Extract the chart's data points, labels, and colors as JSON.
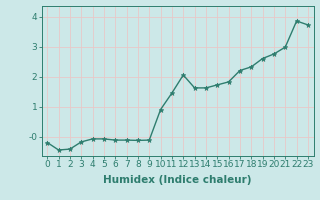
{
  "x": [
    0,
    1,
    2,
    3,
    4,
    5,
    6,
    7,
    8,
    9,
    10,
    11,
    12,
    13,
    14,
    15,
    16,
    17,
    18,
    19,
    20,
    21,
    22,
    23
  ],
  "y": [
    -0.2,
    -0.45,
    -0.42,
    -0.18,
    -0.08,
    -0.08,
    -0.12,
    -0.12,
    -0.13,
    -0.12,
    0.9,
    1.45,
    2.05,
    1.62,
    1.62,
    1.72,
    1.82,
    2.2,
    2.32,
    2.6,
    2.75,
    2.98,
    3.85,
    3.72
  ],
  "line_color": "#2e7d6e",
  "marker": "*",
  "marker_size": 3.5,
  "bg_color": "#cce8e8",
  "grid_color": "#e8c8c8",
  "xlabel": "Humidex (Indice chaleur)",
  "xlabel_fontsize": 7.5,
  "tick_fontsize": 6.5,
  "ylim": [
    -0.65,
    4.35
  ],
  "xlim": [
    -0.5,
    23.5
  ],
  "yticks": [
    0,
    1,
    2,
    3,
    4
  ],
  "ytick_labels": [
    "-0",
    "1",
    "2",
    "3",
    "4"
  ],
  "xtick_labels": [
    "0",
    "1",
    "2",
    "3",
    "4",
    "5",
    "6",
    "7",
    "8",
    "9",
    "10",
    "11",
    "12",
    "13",
    "14",
    "15",
    "16",
    "17",
    "18",
    "19",
    "20",
    "21",
    "22",
    "23"
  ]
}
